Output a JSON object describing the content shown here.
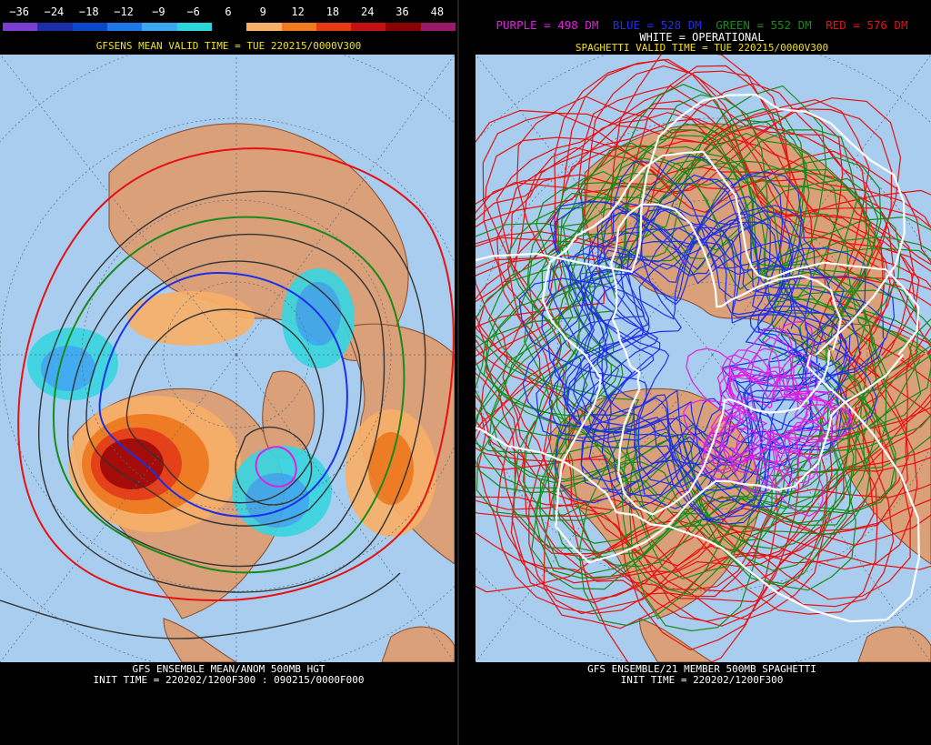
{
  "left": {
    "tick_labels": [
      "−36",
      "−24",
      "−18",
      "−12",
      "−9",
      "−6",
      "6",
      "9",
      "12",
      "18",
      "24",
      "36",
      "48"
    ],
    "colorbar": [
      "#7a3fd0",
      "#1c2fa8",
      "#0a48c8",
      "#1f78e8",
      "#3aa8f0",
      "#2ad6d8",
      "#000000",
      "#f8b068",
      "#f07a1e",
      "#e63a12",
      "#c41010",
      "#8a0000",
      "#9a1a6a"
    ],
    "valid_time": "GFSENS MEAN VALID TIME = TUE 220215/0000V300",
    "footer_line1": "GFS ENSEMBLE MEAN/ANOM 500MB HGT",
    "footer_line2": "INIT TIME = 220202/1200F300 : 090215/0000F000"
  },
  "right": {
    "legend": {
      "purple": "PURPLE = 498 DM",
      "blue": "BLUE = 528 DM",
      "green": "GREEN = 552 DM",
      "red": "RED = 576 DM",
      "white": "WHITE = OPERATIONAL"
    },
    "colors": {
      "purple": "#e020e0",
      "blue": "#2030e8",
      "green": "#1a8a1a",
      "red": "#e81010",
      "white": "#ffffff"
    },
    "valid_time": "SPAGHETTI VALID TIME = TUE 220215/0000V300",
    "footer_line1": "GFS ENSEMBLE/21 MEMBER 500MB SPAGHETTI",
    "footer_line2": "INIT TIME = 220202/1200F300"
  },
  "colors": {
    "ocean": "#a8cdee",
    "land": "#d9a07a",
    "border": "#8a4a2a",
    "grid": "#5a6a7a"
  }
}
